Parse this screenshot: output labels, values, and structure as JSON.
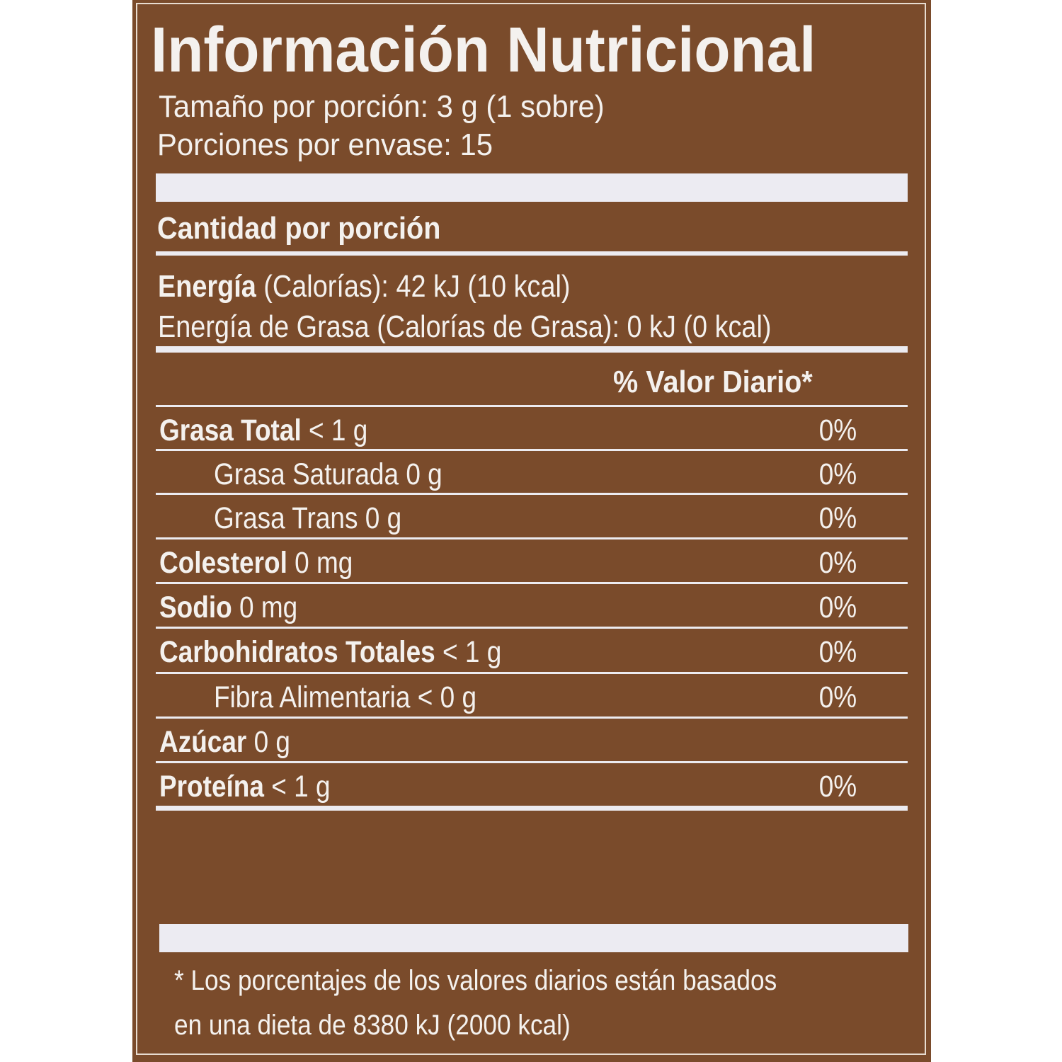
{
  "title": "Información Nutricional",
  "serving_size": "Tamaño por porción: 3 g (1 sobre)",
  "servings_per_container": "Porciones por envase:  15",
  "amount_per_serving": "Cantidad por porción",
  "energy": {
    "label": "Energía",
    "value": " (Calorías): 42 kJ (10 kcal)"
  },
  "energy_fat": "Energía de Grasa (Calorías de Grasa): 0 kJ (0 kcal)",
  "daily_value_header": "% Valor Diario*",
  "rows": [
    {
      "name": "Grasa Total",
      "amount": " < 1 g",
      "pct": "0%",
      "bold": true,
      "indent": false
    },
    {
      "name": "Grasa Saturada",
      "amount": " 0 g",
      "pct": "0%",
      "bold": false,
      "indent": true
    },
    {
      "name": "Grasa Trans",
      "amount": " 0 g",
      "pct": "0%",
      "bold": false,
      "indent": true
    },
    {
      "name": "Colesterol",
      "amount": " 0 mg",
      "pct": "0%",
      "bold": true,
      "indent": false
    },
    {
      "name": "Sodio",
      "amount": " 0 mg",
      "pct": "0%",
      "bold": true,
      "indent": false
    },
    {
      "name": "Carbohidratos Totales",
      "amount": " < 1 g",
      "pct": "0%",
      "bold": true,
      "indent": false
    },
    {
      "name": "Fibra Alimentaria",
      "amount": " < 0 g",
      "pct": "0%",
      "bold": false,
      "indent": true
    },
    {
      "name": "Azúcar",
      "amount": " 0 g",
      "pct": "",
      "bold": true,
      "indent": false
    },
    {
      "name": "Proteína",
      "amount": " < 1 g",
      "pct": "0%",
      "bold": true,
      "indent": false
    }
  ],
  "footnote": [
    "* Los porcentajes de los valores diarios están basados",
    "en una dieta de 8380 kJ (2000 kcal)"
  ],
  "colors": {
    "panel": "#7a4b2b",
    "text": "#f4f1ee"
  }
}
